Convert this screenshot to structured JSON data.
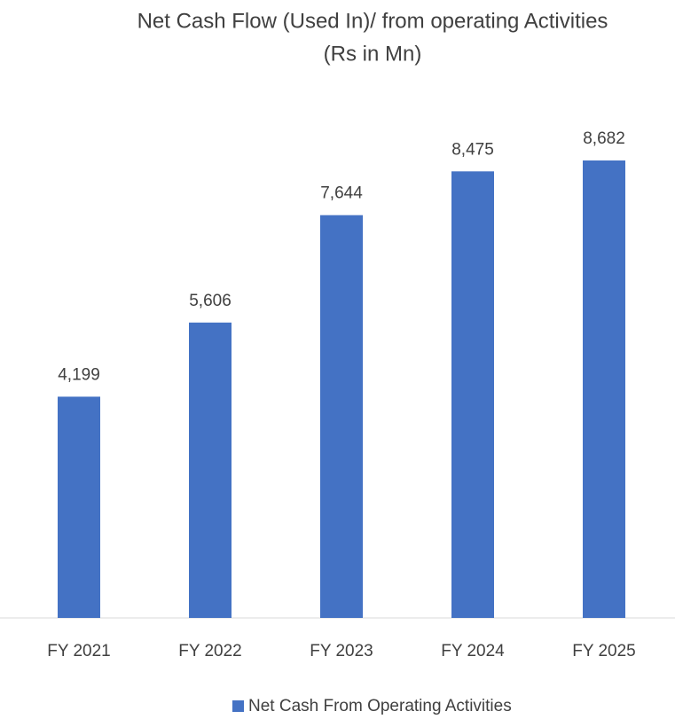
{
  "chart_data": {
    "type": "bar",
    "title": "Net Cash Flow (Used In)/ from operating Activities",
    "subtitle": "(Rs in Mn)",
    "categories": [
      "FY 2021",
      "FY 2022",
      "FY 2023",
      "FY 2024",
      "FY 2025"
    ],
    "series": [
      {
        "name": "Net Cash From Operating Activities",
        "color": "#4472c4",
        "values": [
          4199,
          5606,
          7644,
          8475,
          8682
        ],
        "value_labels": [
          "4,199",
          "5,606",
          "7,644",
          "8,475",
          "8,682"
        ]
      }
    ]
  }
}
